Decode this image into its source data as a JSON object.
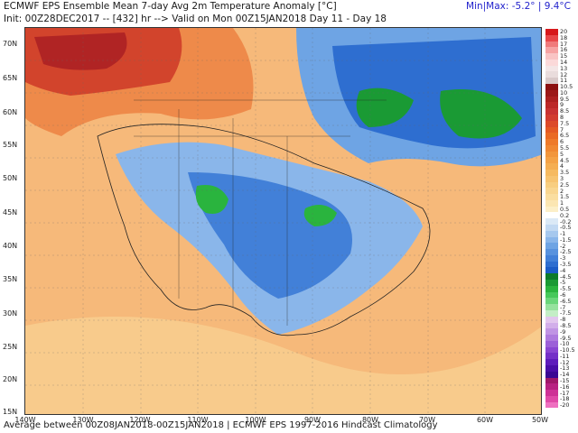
{
  "header": {
    "title": "ECMWF EPS Ensemble Mean 7-day Avg 2m Temperature Anomaly [°C]",
    "subtitle": "Init: 00Z28DEC2017 -- [432] hr --> Valid on Mon 00Z15JAN2018  Day 11 - Day 18",
    "minmax": "Min|Max: -5.2° | 9.4°C"
  },
  "footer": {
    "text": "Average between 00Z08JAN2018-00Z15JAN2018 | ECMWF EPS 1997-2016 Hindcast Climatology"
  },
  "axes": {
    "lat_labels": [
      "70N",
      "65N",
      "60N",
      "55N",
      "50N",
      "45N",
      "40N",
      "35N",
      "30N",
      "25N",
      "20N",
      "15N"
    ],
    "lon_labels": [
      "140W",
      "130W",
      "120W",
      "110W",
      "100W",
      "90W",
      "80W",
      "70W",
      "60W",
      "50W"
    ]
  },
  "colorbar": {
    "labels": [
      "20",
      "18",
      "17",
      "16",
      "15",
      "14",
      "13",
      "12",
      "11",
      "10.5",
      "10",
      "9.5",
      "9",
      "8.5",
      "8",
      "7.5",
      "7",
      "6.5",
      "6",
      "5.5",
      "5",
      "4.5",
      "4",
      "3.5",
      "3",
      "2.5",
      "2",
      "1.5",
      "1",
      "0.5",
      "0.2",
      "-0.2",
      "-0.5",
      "-1",
      "-1.5",
      "-2",
      "-2.5",
      "-3",
      "-3.5",
      "-4",
      "-4.5",
      "-5",
      "-5.5",
      "-6",
      "-6.5",
      "-7",
      "-7.5",
      "-8",
      "-8.5",
      "-9",
      "-9.5",
      "-10",
      "-10.5",
      "-11",
      "-12",
      "-13",
      "-14",
      "-15",
      "-16",
      "-17",
      "-18",
      "-20"
    ],
    "colors": [
      "#d7191c",
      "#e8484a",
      "#f07a7b",
      "#f6a3a3",
      "#f9c4c4",
      "#fbd9d9",
      "#f3e6e6",
      "#e9dcdc",
      "#d8c8c8",
      "#8c1010",
      "#9c1818",
      "#ac2020",
      "#bc2828",
      "#c83232",
      "#d23c30",
      "#dc4a2a",
      "#e45a24",
      "#ea6a24",
      "#ee7a2a",
      "#f08832",
      "#f2963c",
      "#f4a246",
      "#f5ae52",
      "#f6ba60",
      "#f7c470",
      "#f8ce80",
      "#f9d690",
      "#fadea0",
      "#fbe6b2",
      "#fcefc8",
      "#ffffff",
      "#dbe9f6",
      "#c2d9f2",
      "#a6c8ee",
      "#8ab6ea",
      "#6ea4e4",
      "#5892de",
      "#4280d8",
      "#2e6ed0",
      "#1c5cc6",
      "#0e7a2a",
      "#1a9a34",
      "#2ab43e",
      "#46c85a",
      "#6ad67a",
      "#96e29e",
      "#c4eec6",
      "#e2c6ee",
      "#d2aeea",
      "#c094e4",
      "#ae7ade",
      "#9c60d8",
      "#8a46d2",
      "#7430c8",
      "#5e1cbc",
      "#4a0ea8",
      "#3a0894",
      "#a0186a",
      "#b82282",
      "#ce3296",
      "#e04aa8",
      "#ee70c0"
    ]
  }
}
